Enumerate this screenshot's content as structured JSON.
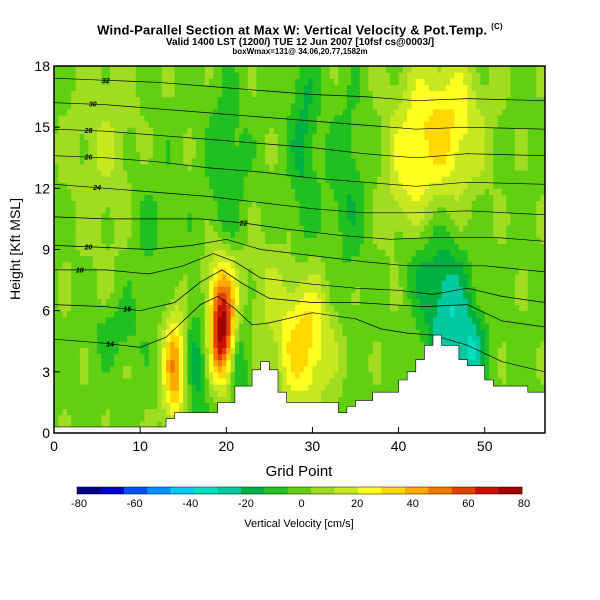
{
  "header": {
    "title": "Wind-Parallel Section at Max W: Vertical Velocity & Pot.Temp.",
    "title_mark": "(C)",
    "line2": "Valid 1400 LST (1200/) TUE 12 Jun 2007 [10fsf cs@0003/]",
    "line3": "boxWmax=131@ 34.06,20.77,1582m"
  },
  "chart_data": {
    "type": "heatmap",
    "title": "Wind-Parallel Section at Max W: Vertical Velocity & Pot.Temp.",
    "xlabel": "Grid Point",
    "ylabel": "Height [Kft MSL]",
    "xlim": [
      0,
      57
    ],
    "ylim": [
      0,
      18
    ],
    "x_ticks": [
      "0",
      "10",
      "20",
      "30",
      "40",
      "50"
    ],
    "y_ticks": [
      "0",
      "3",
      "6",
      "9",
      "12",
      "15",
      "18"
    ],
    "colorbar": {
      "label": "Vertical Velocity [cm/s]",
      "ticks": [
        "-80",
        "-60",
        "-40",
        "-20",
        "0",
        "20",
        "40",
        "60",
        "80"
      ],
      "colors": [
        "#000080",
        "#0000d0",
        "#0050f0",
        "#0090ff",
        "#00c8f0",
        "#00e0c0",
        "#00c8a0",
        "#00b040",
        "#20c020",
        "#60d010",
        "#a0dc20",
        "#c8e820",
        "#ffff20",
        "#ffd800",
        "#ffa800",
        "#f07800",
        "#e04000",
        "#c81000",
        "#a00000"
      ]
    },
    "velocity_features": [
      {
        "x": 14,
        "y": 3.2,
        "value": 50,
        "sx": 1.0,
        "sy": 2.0
      },
      {
        "x": 19.5,
        "y": 4.8,
        "value": 80,
        "sx": 1.0,
        "sy": 1.6
      },
      {
        "x": 19.5,
        "y": 7.2,
        "value": 30,
        "sx": 1.5,
        "sy": 1.5
      },
      {
        "x": 29,
        "y": 4.5,
        "value": 40,
        "sx": 2.2,
        "sy": 2.3
      },
      {
        "x": 45.5,
        "y": 15,
        "value": 35,
        "sx": 3.0,
        "sy": 2.5
      },
      {
        "x": 41,
        "y": 12.5,
        "value": 20,
        "sx": 2.0,
        "sy": 3.0
      },
      {
        "x": 6,
        "y": 14,
        "value": 12,
        "sx": 3.0,
        "sy": 4.0
      },
      {
        "x": 24.5,
        "y": 7,
        "value": 10,
        "sx": 1.5,
        "sy": 2.0
      },
      {
        "x": 16.5,
        "y": 3.5,
        "value": -20,
        "sx": 1.0,
        "sy": 2.5
      },
      {
        "x": 21.5,
        "y": 3.5,
        "value": -20,
        "sx": 0.8,
        "sy": 1.5
      },
      {
        "x": 7,
        "y": 5,
        "value": -12,
        "sx": 2.0,
        "sy": 1.0
      },
      {
        "x": 45.5,
        "y": 6,
        "value": -35,
        "sx": 1.8,
        "sy": 2.5
      },
      {
        "x": 48.5,
        "y": 4,
        "value": -30,
        "sx": 1.2,
        "sy": 1.5
      },
      {
        "x": 29,
        "y": 14.5,
        "value": -18,
        "sx": 1.2,
        "sy": 4.0
      },
      {
        "x": 20,
        "y": 13,
        "value": -15,
        "sx": 1.5,
        "sy": 3.0
      },
      {
        "x": 34,
        "y": 12,
        "value": -15,
        "sx": 1.5,
        "sy": 3.0
      },
      {
        "x": 11,
        "y": 10,
        "value": -8,
        "sx": 2.0,
        "sy": 3.0
      },
      {
        "x": 42,
        "y": 8.5,
        "value": -15,
        "sx": 1.5,
        "sy": 1.5
      }
    ],
    "terrain": [
      [
        0,
        0.3
      ],
      [
        5,
        0.3
      ],
      [
        6,
        0.3
      ],
      [
        7,
        0.3
      ],
      [
        8,
        0.3
      ],
      [
        9,
        0.3
      ],
      [
        10,
        0.3
      ],
      [
        11,
        0.3
      ],
      [
        12,
        0.3
      ],
      [
        13,
        0.7
      ],
      [
        14,
        1.0
      ],
      [
        15,
        1.0
      ],
      [
        16,
        1.0
      ],
      [
        17,
        1.0
      ],
      [
        18,
        1.0
      ],
      [
        19,
        1.5
      ],
      [
        20,
        1.5
      ],
      [
        21,
        2.3
      ],
      [
        22,
        2.3
      ],
      [
        23,
        3.1
      ],
      [
        24,
        3.5
      ],
      [
        25,
        3.1
      ],
      [
        26,
        2.0
      ],
      [
        27,
        1.5
      ],
      [
        28,
        1.5
      ],
      [
        29,
        1.5
      ],
      [
        30,
        1.5
      ],
      [
        31,
        1.5
      ],
      [
        32,
        1.5
      ],
      [
        33,
        1.0
      ],
      [
        34,
        1.3
      ],
      [
        35,
        1.6
      ],
      [
        36,
        1.6
      ],
      [
        37,
        2.0
      ],
      [
        38,
        2.0
      ],
      [
        39,
        2.0
      ],
      [
        40,
        2.6
      ],
      [
        41,
        3.0
      ],
      [
        42,
        3.6
      ],
      [
        43,
        4.3
      ],
      [
        44,
        4.8
      ],
      [
        45,
        4.3
      ],
      [
        46,
        4.3
      ],
      [
        47,
        3.6
      ],
      [
        48,
        3.3
      ],
      [
        49,
        3.3
      ],
      [
        50,
        2.6
      ],
      [
        51,
        2.3
      ],
      [
        52,
        2.3
      ],
      [
        53,
        2.3
      ],
      [
        54,
        2.3
      ],
      [
        55,
        2.0
      ],
      [
        56,
        2.0
      ],
      [
        57,
        2.0
      ]
    ],
    "isentropes": [
      {
        "label": "14",
        "label_x": 6.5,
        "pts": [
          [
            0,
            4.6
          ],
          [
            6,
            4.4
          ],
          [
            10,
            4.2
          ],
          [
            13,
            4.7
          ],
          [
            15,
            5.5
          ],
          [
            17,
            6.3
          ],
          [
            19,
            6.7
          ],
          [
            21,
            6.1
          ],
          [
            23,
            5.3
          ],
          [
            25,
            5.4
          ],
          [
            30,
            5.9
          ],
          [
            35,
            5.6
          ],
          [
            38,
            5.1
          ],
          [
            41,
            4.9
          ],
          [
            44,
            4.8
          ],
          [
            48,
            4.3
          ],
          [
            52,
            3.5
          ],
          [
            55,
            3.2
          ],
          [
            57,
            3.0
          ]
        ]
      },
      {
        "label": "16",
        "label_x": 8.5,
        "pts": [
          [
            0,
            6.3
          ],
          [
            6,
            6.2
          ],
          [
            10,
            6.0
          ],
          [
            14,
            6.4
          ],
          [
            17,
            7.4
          ],
          [
            19.5,
            8.0
          ],
          [
            22,
            7.3
          ],
          [
            25,
            6.6
          ],
          [
            30,
            6.4
          ],
          [
            35,
            6.4
          ],
          [
            39,
            6.3
          ],
          [
            43,
            6.2
          ],
          [
            48,
            6.3
          ],
          [
            52,
            5.5
          ],
          [
            57,
            5.2
          ]
        ]
      },
      {
        "label": "18",
        "label_x": 3.0,
        "pts": [
          [
            0,
            8.0
          ],
          [
            6,
            8.0
          ],
          [
            11,
            7.8
          ],
          [
            15,
            8.2
          ],
          [
            18.5,
            8.8
          ],
          [
            21,
            8.4
          ],
          [
            24,
            7.6
          ],
          [
            30,
            7.3
          ],
          [
            35,
            7.1
          ],
          [
            40,
            7.0
          ],
          [
            44,
            6.8
          ],
          [
            48,
            7.1
          ],
          [
            52,
            6.7
          ],
          [
            57,
            6.4
          ]
        ]
      },
      {
        "label": "20",
        "label_x": 4.0,
        "pts": [
          [
            0,
            9.2
          ],
          [
            6,
            9.1
          ],
          [
            11,
            9.0
          ],
          [
            16,
            9.2
          ],
          [
            20,
            9.5
          ],
          [
            24,
            9.0
          ],
          [
            30,
            8.7
          ],
          [
            36,
            8.4
          ],
          [
            41,
            8.2
          ],
          [
            45,
            8.2
          ],
          [
            50,
            8.2
          ],
          [
            57,
            7.9
          ]
        ]
      },
      {
        "label": "22",
        "label_x": 22.0,
        "pts": [
          [
            0,
            10.6
          ],
          [
            6,
            10.5
          ],
          [
            12,
            10.5
          ],
          [
            17,
            10.5
          ],
          [
            22,
            10.3
          ],
          [
            27,
            10.0
          ],
          [
            33,
            9.7
          ],
          [
            39,
            9.5
          ],
          [
            45,
            9.6
          ],
          [
            51,
            9.6
          ],
          [
            57,
            9.4
          ]
        ]
      },
      {
        "label": "24",
        "label_x": 5.0,
        "pts": [
          [
            0,
            12.2
          ],
          [
            6,
            12.0
          ],
          [
            12,
            11.8
          ],
          [
            18,
            11.6
          ],
          [
            24,
            11.3
          ],
          [
            30,
            11.0
          ],
          [
            36,
            10.8
          ],
          [
            42,
            10.8
          ],
          [
            48,
            10.9
          ],
          [
            57,
            10.7
          ]
        ]
      },
      {
        "label": "26",
        "label_x": 4.0,
        "pts": [
          [
            0,
            13.6
          ],
          [
            6,
            13.5
          ],
          [
            12,
            13.3
          ],
          [
            18,
            13.0
          ],
          [
            24,
            12.8
          ],
          [
            30,
            12.5
          ],
          [
            36,
            12.3
          ],
          [
            42,
            12.1
          ],
          [
            48,
            12.3
          ],
          [
            57,
            12.2
          ]
        ]
      },
      {
        "label": "28",
        "label_x": 4.0,
        "pts": [
          [
            0,
            14.9
          ],
          [
            6,
            14.8
          ],
          [
            12,
            14.6
          ],
          [
            18,
            14.4
          ],
          [
            24,
            14.2
          ],
          [
            30,
            14.0
          ],
          [
            36,
            13.7
          ],
          [
            42,
            13.5
          ],
          [
            48,
            13.7
          ],
          [
            57,
            13.6
          ]
        ]
      },
      {
        "label": "30",
        "label_x": 4.5,
        "pts": [
          [
            0,
            16.2
          ],
          [
            6,
            16.1
          ],
          [
            12,
            15.9
          ],
          [
            18,
            15.7
          ],
          [
            24,
            15.5
          ],
          [
            30,
            15.3
          ],
          [
            36,
            15.1
          ],
          [
            42,
            14.9
          ],
          [
            48,
            15.0
          ],
          [
            57,
            14.9
          ]
        ]
      },
      {
        "label": "32",
        "label_x": 6.0,
        "pts": [
          [
            0,
            17.4
          ],
          [
            6,
            17.3
          ],
          [
            12,
            17.2
          ],
          [
            18,
            17.0
          ],
          [
            24,
            16.8
          ],
          [
            30,
            16.6
          ],
          [
            36,
            16.5
          ],
          [
            42,
            16.3
          ],
          [
            48,
            16.4
          ],
          [
            57,
            16.3
          ]
        ]
      }
    ]
  }
}
